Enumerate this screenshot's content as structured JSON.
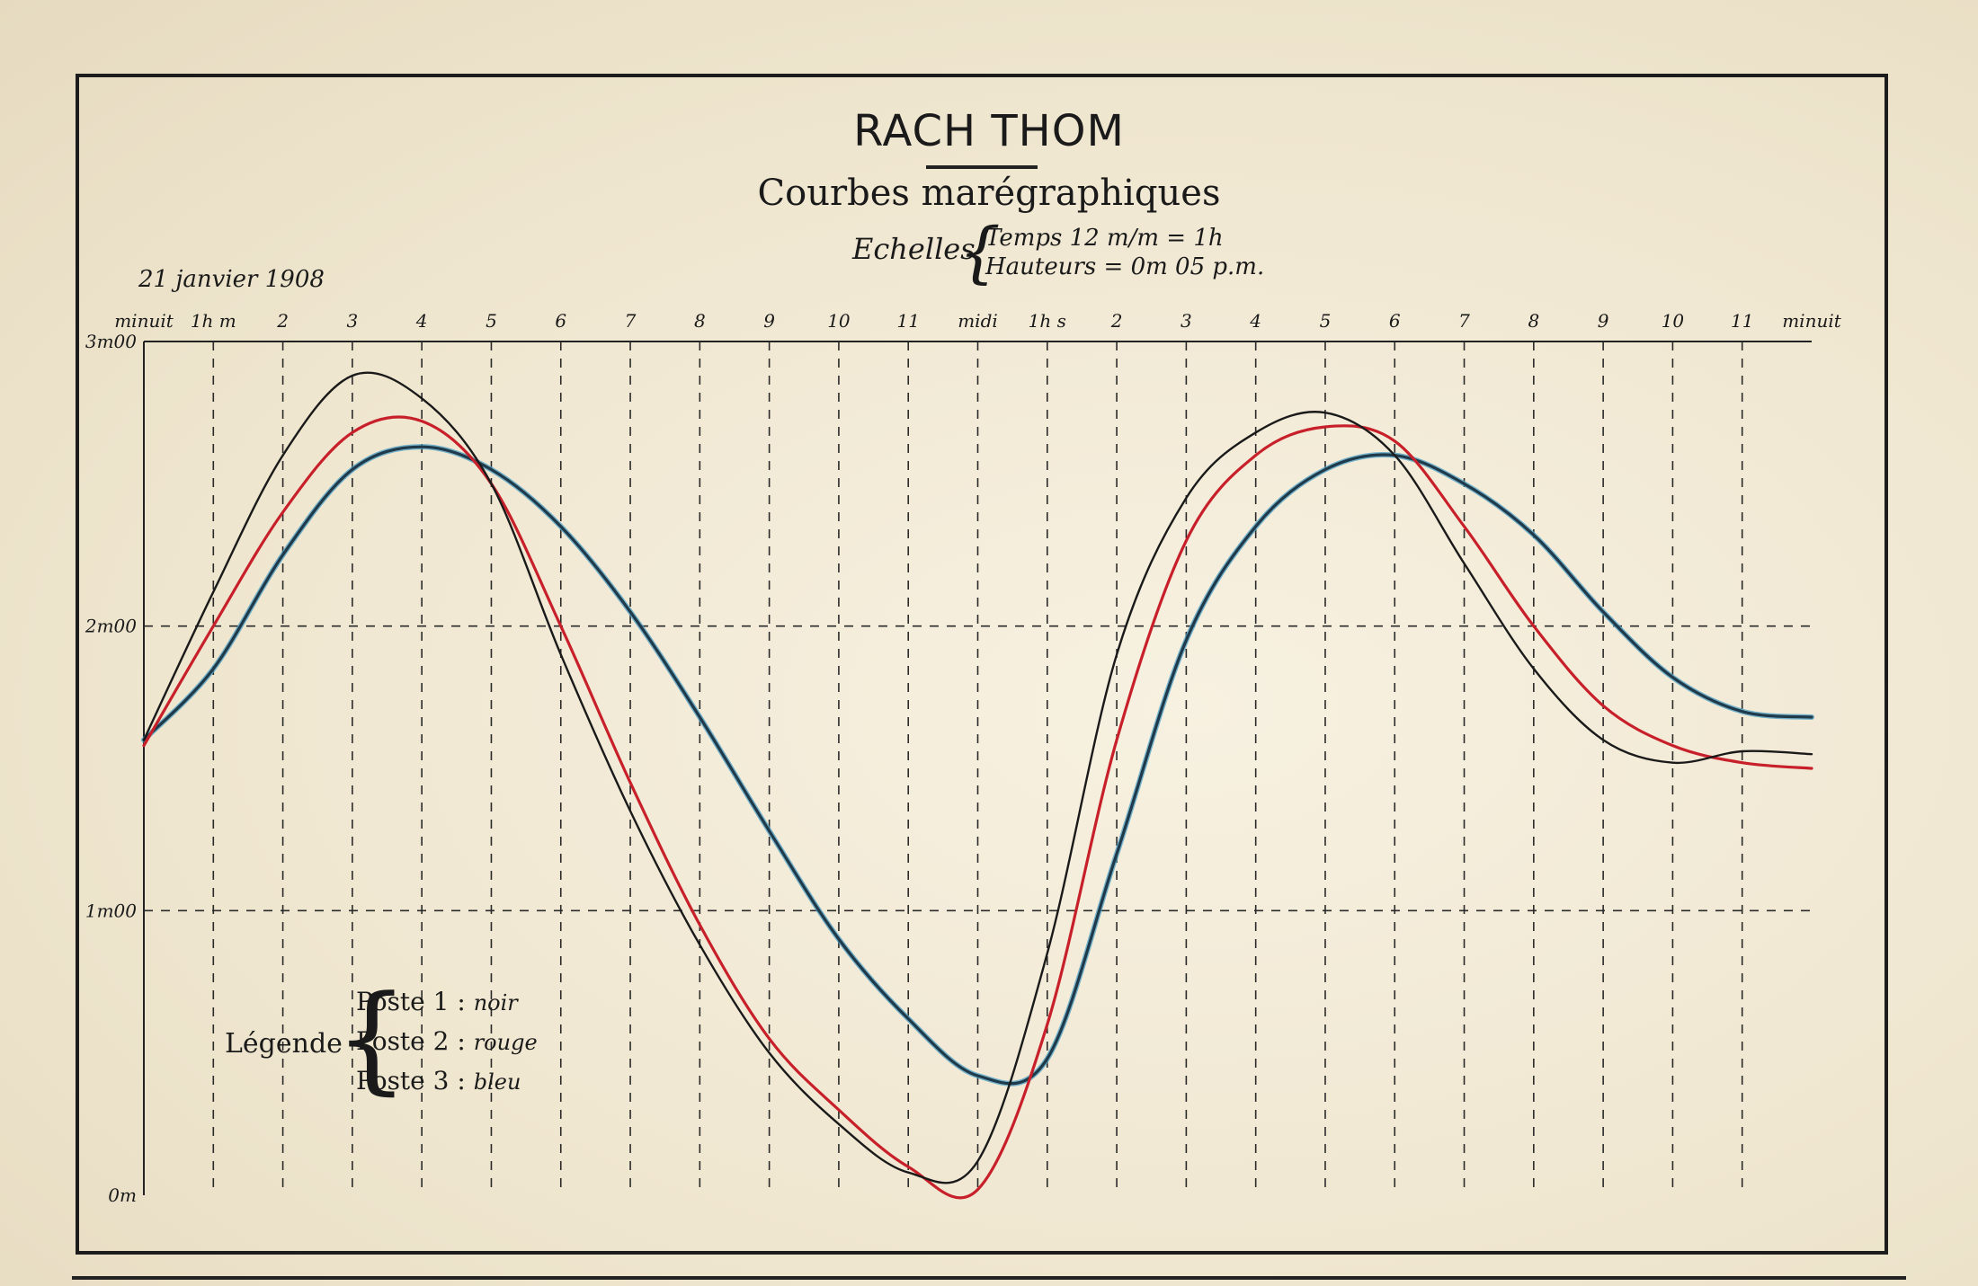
{
  "title": "RACH THOM",
  "subtitle": "Courbes marégraphiques",
  "scales": {
    "label": "Echelles",
    "time": "Temps 12 m/m = 1h",
    "height": "Hauteurs = 0m 05 p.m."
  },
  "date": "21 janvier 1908",
  "legend": {
    "title": "Légende",
    "items": [
      {
        "name": "Poste 1",
        "color_word": "noir",
        "color": "#1a1a1a"
      },
      {
        "name": "Poste 2",
        "color_word": "rouge",
        "color": "#c8202a"
      },
      {
        "name": "Poste 3",
        "color_word": "bleu",
        "color": "#1f3a4a"
      }
    ]
  },
  "chart_data": {
    "type": "line",
    "title": "RACH THOM",
    "subtitle": "Courbes marégraphiques",
    "xlabel": "",
    "ylabel": "",
    "x_tick_labels": [
      "minuit",
      "1h m",
      "2",
      "3",
      "4",
      "5",
      "6",
      "7",
      "8",
      "9",
      "10",
      "11",
      "midi",
      "1h s",
      "2",
      "3",
      "4",
      "5",
      "6",
      "7",
      "8",
      "9",
      "10",
      "11",
      "minuit"
    ],
    "y_tick_labels": [
      {
        "value": 3,
        "label": "3m00"
      },
      {
        "value": 2,
        "label": "2m00"
      },
      {
        "value": 1,
        "label": "1m00"
      },
      {
        "value": 0,
        "label": "0m"
      }
    ],
    "xlim": [
      0,
      24
    ],
    "ylim": [
      0,
      3
    ],
    "grid": "dashed, hourly verticals and 1 m horizontals",
    "legend_position": "bottom-left",
    "series": [
      {
        "name": "Poste 1",
        "color": "#1a1a1a",
        "x": [
          0,
          1,
          2,
          3,
          4,
          5,
          6,
          7,
          8,
          9,
          10,
          11,
          12,
          13,
          14,
          15,
          16,
          17,
          18,
          19,
          20,
          21,
          22,
          23,
          24
        ],
        "y": [
          1.6,
          2.12,
          2.6,
          2.88,
          2.8,
          2.5,
          1.9,
          1.35,
          0.88,
          0.5,
          0.25,
          0.08,
          0.12,
          0.85,
          1.9,
          2.45,
          2.68,
          2.75,
          2.6,
          2.22,
          1.85,
          1.6,
          1.52,
          1.56,
          1.55
        ]
      },
      {
        "name": "Poste 2",
        "color": "#c8202a",
        "x": [
          0,
          1,
          2,
          3,
          4,
          5,
          6,
          7,
          8,
          9,
          10,
          11,
          12,
          13,
          14,
          15,
          16,
          17,
          18,
          19,
          20,
          21,
          22,
          23,
          24
        ],
        "y": [
          1.58,
          2.0,
          2.4,
          2.68,
          2.72,
          2.5,
          2.0,
          1.45,
          0.95,
          0.55,
          0.3,
          0.1,
          0.02,
          0.6,
          1.6,
          2.3,
          2.6,
          2.7,
          2.65,
          2.35,
          2.0,
          1.72,
          1.58,
          1.52,
          1.5
        ],
        "note": ""
      },
      {
        "name": "Poste 3",
        "color": "#1f3a4a",
        "x": [
          0,
          1,
          2,
          3,
          4,
          5,
          6,
          7,
          8,
          9,
          10,
          11,
          12,
          13,
          14,
          15,
          16,
          17,
          18,
          19,
          20,
          21,
          22,
          23,
          24
        ],
        "y": [
          1.6,
          1.85,
          2.25,
          2.55,
          2.63,
          2.55,
          2.35,
          2.05,
          1.68,
          1.28,
          0.9,
          0.62,
          0.42,
          0.48,
          1.2,
          1.95,
          2.35,
          2.55,
          2.6,
          2.5,
          2.32,
          2.05,
          1.82,
          1.7,
          1.68
        ]
      }
    ]
  }
}
